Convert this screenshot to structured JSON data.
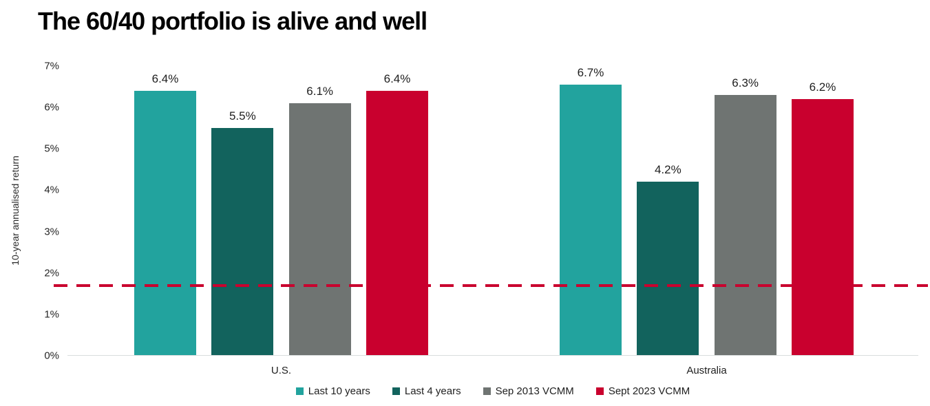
{
  "title": "The 60/40 portfolio is alive and well",
  "chart_data": {
    "type": "bar",
    "title": "The 60/40 portfolio is alive and well",
    "xlabel": "",
    "ylabel": "10-year annualised return",
    "categories": [
      "U.S.",
      "Australia"
    ],
    "series": [
      {
        "name": "Last 10 years",
        "color": "#22A39E",
        "values": [
          6.4,
          6.7
        ],
        "labels": [
          "6.4%",
          "6.7%"
        ]
      },
      {
        "name": "Last 4 years",
        "color": "#12635D",
        "values": [
          5.5,
          4.2
        ],
        "labels": [
          "5.5%",
          "4.2%"
        ]
      },
      {
        "name": "Sep 2013 VCMM",
        "color": "#6F7472",
        "values": [
          6.1,
          6.3
        ],
        "labels": [
          "6.1%",
          "6.3%"
        ]
      },
      {
        "name": "Sept 2023 VCMM",
        "color": "#C9002E",
        "values": [
          6.4,
          6.2
        ],
        "labels": [
          "6.4%",
          "6.2%"
        ]
      }
    ],
    "ylim": [
      0,
      7
    ],
    "yticks": [
      "0%",
      "1%",
      "2%",
      "3%",
      "4%",
      "5%",
      "6%",
      "7%"
    ],
    "grid": false,
    "legend_position": "bottom",
    "reference_line": {
      "value": 1.7,
      "color": "#C9002E",
      "style": "dashed"
    }
  }
}
